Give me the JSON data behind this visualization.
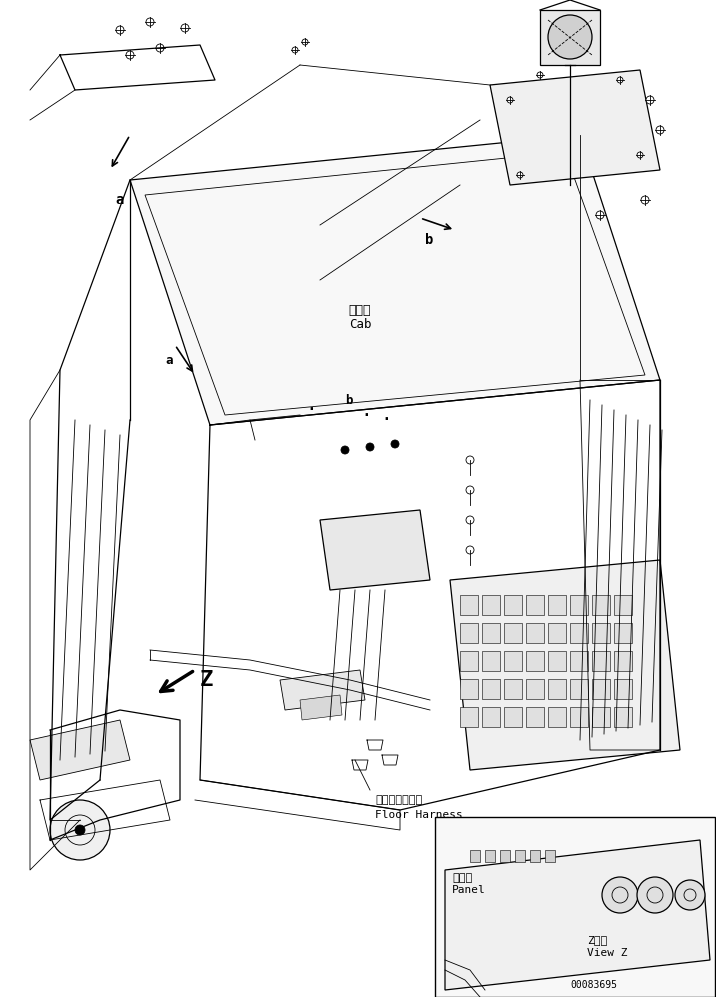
{
  "title": "",
  "background_color": "#ffffff",
  "line_color": "#000000",
  "text_color": "#000000",
  "part_number": "00083695",
  "labels": {
    "a_label": "a",
    "b_label": "b",
    "cab_jp": "キャブ",
    "cab_en": "Cab",
    "floor_harness_jp": "フロアハーネス",
    "floor_harness_en": "Floor Harness",
    "panel_jp": "パネル",
    "panel_en": "Panel",
    "view_z_jp": "Z　視",
    "view_z_en": "View Z",
    "z_arrow": "Z"
  },
  "figsize": [
    7.16,
    9.97
  ],
  "dpi": 100
}
